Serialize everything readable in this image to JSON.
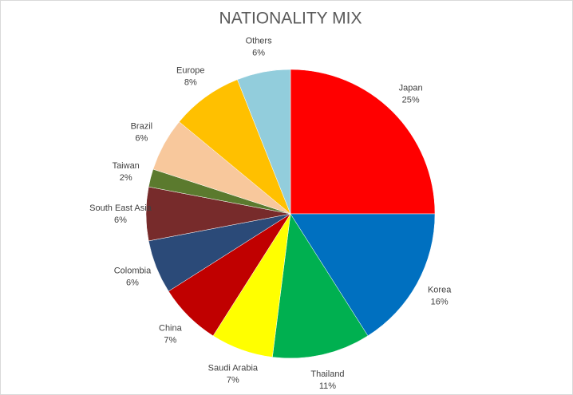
{
  "chart_data": {
    "type": "pie",
    "title": "NATIONALITY MIX",
    "categories": [
      "Japan",
      "Korea",
      "Thailand",
      "Saudi Arabia",
      "China",
      "Colombia",
      "South East Asia",
      "Taiwan",
      "Brazil",
      "Europe",
      "Others"
    ],
    "values": [
      25,
      16,
      11,
      7,
      7,
      6,
      6,
      2,
      6,
      8,
      6
    ],
    "value_labels": [
      "25%",
      "16%",
      "11%",
      "7%",
      "7%",
      "6%",
      "6%",
      "2%",
      "6%",
      "8%",
      "6%"
    ],
    "colors": [
      "#ff0000",
      "#0070c0",
      "#00b050",
      "#ffff00",
      "#c00000",
      "#2b4a78",
      "#772b2b",
      "#5b7a2e",
      "#f8c89c",
      "#ffc000",
      "#92cddc"
    ]
  }
}
